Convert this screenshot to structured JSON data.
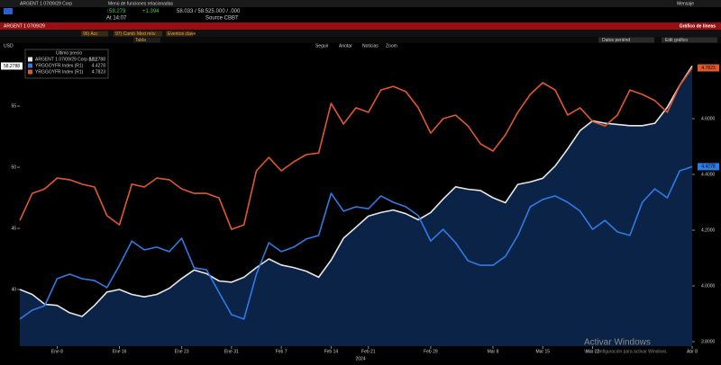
{
  "ui": {
    "topbar": {
      "security": "ARGENT 1 07/09/29 Corp",
      "menu": "Menú de funciones relacionadas",
      "message": "Mensaje"
    },
    "quote": {
      "last": "↑58.279",
      "change": "+1.394",
      "bid_ask": "58.033 / 58.525",
      "sizes": ".000 / .000",
      "time": "At 14:07",
      "source": "Source CBBT"
    },
    "redbar": {
      "left": "ARGENT 1 07/09/29",
      "right": "Gráfico de líneas"
    },
    "toolbar": [
      "96) Acc",
      "97) Camb",
      "Med móv",
      "Eventos clave",
      "Tabla"
    ],
    "toolbar_right": [
      "Datos periénd",
      "Edit gráfico"
    ],
    "chart_tools": [
      "Seguir",
      "Anotar",
      "Noticias",
      "Zoom"
    ],
    "legend_title": "Último precio",
    "watermark": [
      "Activar Windows",
      "Ve a Configuración para activar Windows."
    ]
  },
  "chart_data": {
    "type": "line",
    "ylabel": "USD",
    "xlabel": "2024",
    "categories": [
      null,
      null,
      null,
      "Ene 8",
      null,
      null,
      null,
      null,
      "Ene 16",
      null,
      null,
      null,
      null,
      "Ene 23",
      null,
      null,
      null,
      "Ene 31",
      null,
      null,
      null,
      "Feb 7",
      null,
      null,
      null,
      "Feb 14",
      null,
      null,
      "Feb 21",
      null,
      null,
      null,
      null,
      "Feb 29",
      null,
      null,
      null,
      null,
      "Mar 8",
      null,
      null,
      null,
      "Mar 15",
      null,
      null,
      null,
      "Mar 22",
      null,
      null,
      null,
      null,
      null,
      null,
      null,
      "Abr 8"
    ],
    "ylim": [
      35.37,
      60.15
    ],
    "yticks": [
      40,
      45,
      50,
      55
    ],
    "y2lim": [
      3.784,
      4.871
    ],
    "y2ticks": [
      {
        "value": 3.8,
        "label": "3.8000"
      },
      {
        "value": 4.0,
        "label": "4.0000"
      },
      {
        "value": 4.2,
        "label": "4.2000"
      },
      {
        "value": 4.4,
        "label": "4.4000"
      },
      {
        "value": 4.6,
        "label": "4.6000"
      }
    ],
    "series": [
      {
        "name": "ARGENT 1 07/09/29 Corp (L1)",
        "color": "#e6e6e6",
        "area_color": "#0b2346",
        "axis": "y",
        "values": [
          40.0,
          39.6,
          38.8,
          38.7,
          38.1,
          37.8,
          38.7,
          39.8,
          40.0,
          39.6,
          39.4,
          39.6,
          40.1,
          40.9,
          41.6,
          41.3,
          40.7,
          40.6,
          41.0,
          41.8,
          42.5,
          42.0,
          41.8,
          41.5,
          41.0,
          42.4,
          44.2,
          45.1,
          46.0,
          46.3,
          46.5,
          46.2,
          45.7,
          46.3,
          47.4,
          48.4,
          48.2,
          48.1,
          47.5,
          47.1,
          48.6,
          48.8,
          49.1,
          50.1,
          51.5,
          53.0,
          53.8,
          53.6,
          53.5,
          53.4,
          53.4,
          53.6,
          54.9,
          56.7,
          58.2788
        ]
      },
      {
        "name": "YRGGOYFR Index (R1)",
        "color": "#2f7be6",
        "axis": "y2",
        "values": [
          3.881,
          3.913,
          3.929,
          4.026,
          4.042,
          4.026,
          4.019,
          3.994,
          4.074,
          4.161,
          4.129,
          4.139,
          4.123,
          4.171,
          4.065,
          4.058,
          3.977,
          3.897,
          3.881,
          4.042,
          4.155,
          4.123,
          4.139,
          4.168,
          4.181,
          4.332,
          4.268,
          4.284,
          4.277,
          4.323,
          4.3,
          4.284,
          4.252,
          4.161,
          4.203,
          4.155,
          4.09,
          4.074,
          4.074,
          4.106,
          4.181,
          4.284,
          4.31,
          4.323,
          4.3,
          4.268,
          4.203,
          4.235,
          4.194,
          4.181,
          4.3,
          4.348,
          4.316,
          4.413,
          4.4278
        ]
      },
      {
        "name": "YRGGOYFR Index (R1)",
        "color": "#e2582b",
        "axis": "y2",
        "values": [
          4.235,
          4.332,
          4.348,
          4.387,
          4.381,
          4.365,
          4.355,
          4.252,
          4.219,
          4.365,
          4.355,
          4.387,
          4.381,
          4.348,
          4.332,
          4.332,
          4.316,
          4.203,
          4.219,
          4.413,
          4.461,
          4.413,
          4.445,
          4.471,
          4.477,
          4.655,
          4.581,
          4.639,
          4.623,
          4.703,
          4.716,
          4.697,
          4.639,
          4.548,
          4.6,
          4.613,
          4.574,
          4.51,
          4.484,
          4.542,
          4.623,
          4.687,
          4.729,
          4.703,
          4.613,
          4.639,
          4.59,
          4.574,
          4.613,
          4.703,
          4.687,
          4.665,
          4.623,
          4.719,
          4.7823
        ]
      }
    ]
  }
}
